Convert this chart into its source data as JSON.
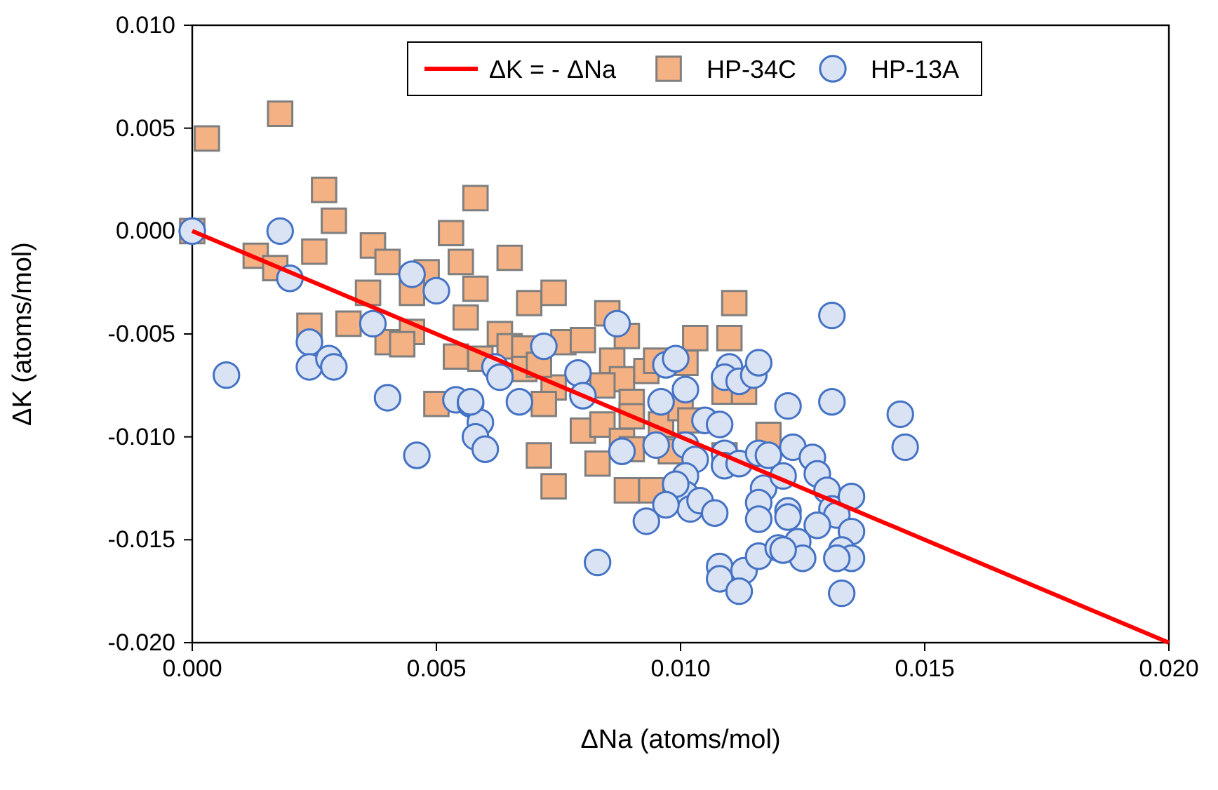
{
  "chart_data": {
    "type": "scatter",
    "xlabel": "ΔNa (atoms/mol)",
    "ylabel": "ΔK (atoms/mol)",
    "xlim": [
      0,
      0.02
    ],
    "ylim": [
      -0.02,
      0.01
    ],
    "xticks": [
      {
        "value": 0,
        "label": "0.000"
      },
      {
        "value": 0.005,
        "label": "0.005"
      },
      {
        "value": 0.01,
        "label": "0.010"
      },
      {
        "value": 0.015,
        "label": "0.015"
      },
      {
        "value": 0.02,
        "label": "0.020"
      }
    ],
    "yticks": [
      {
        "value": -0.02,
        "label": "-0.020"
      },
      {
        "value": -0.015,
        "label": "-0.015"
      },
      {
        "value": -0.01,
        "label": "-0.010"
      },
      {
        "value": -0.005,
        "label": "-0.005"
      },
      {
        "value": 0,
        "label": "0.000"
      },
      {
        "value": 0.005,
        "label": "0.005"
      },
      {
        "value": 0.01,
        "label": "0.010"
      }
    ],
    "legend": "top",
    "grid": false,
    "series": [
      {
        "name": "ΔK = - ΔNa",
        "type": "line",
        "color": "#ff0000",
        "line_style": "solid",
        "x": [
          0,
          0.02
        ],
        "values": [
          0,
          -0.02
        ]
      },
      {
        "name": "HP-34C",
        "color": "#f4b183",
        "marker": "square",
        "x": [
          0,
          0.0003,
          0.0018,
          0.0027,
          0.0029,
          0.0025,
          0.0013,
          0.0017,
          0.0058,
          0.0053,
          0.0037,
          0.004,
          0.0048,
          0.0045,
          0.0036,
          0.0055,
          0.0065,
          0.0058,
          0.0056,
          0.0024,
          0.0032,
          0.004,
          0.0045,
          0.0043,
          0.0054,
          0.0059,
          0.005,
          0.0063,
          0.0069,
          0.0074,
          0.0065,
          0.0068,
          0.0068,
          0.0074,
          0.0072,
          0.0076,
          0.008,
          0.0085,
          0.0089,
          0.0086,
          0.0088,
          0.0084,
          0.009,
          0.008,
          0.0084,
          0.0071,
          0.0074,
          0.0083,
          0.0089,
          0.0094,
          0.0088,
          0.009,
          0.009,
          0.0096,
          0.0098,
          0.01,
          0.0102,
          0.0093,
          0.0095,
          0.0101,
          0.0103,
          0.011,
          0.0111,
          0.0109,
          0.0113,
          0.0118,
          0.0109,
          0.0071
        ],
        "values": [
          0,
          0.0045,
          0.0057,
          0.002,
          0.0005,
          -0.001,
          -0.0012,
          -0.0018,
          0.0016,
          -0.0001,
          -0.0007,
          -0.0015,
          -0.002,
          -0.003,
          -0.003,
          -0.0015,
          -0.0013,
          -0.0028,
          -0.0042,
          -0.0046,
          -0.0045,
          -0.0054,
          -0.0049,
          -0.0055,
          -0.0061,
          -0.0062,
          -0.0084,
          -0.005,
          -0.0035,
          -0.003,
          -0.0056,
          -0.0057,
          -0.0067,
          -0.0076,
          -0.0084,
          -0.0054,
          -0.0053,
          -0.004,
          -0.0051,
          -0.0063,
          -0.0072,
          -0.0075,
          -0.0083,
          -0.0097,
          -0.0094,
          -0.0109,
          -0.0124,
          -0.0113,
          -0.0126,
          -0.0126,
          -0.0102,
          -0.0106,
          -0.009,
          -0.0094,
          -0.0107,
          -0.0086,
          -0.0092,
          -0.0068,
          -0.0063,
          -0.0064,
          -0.0052,
          -0.0052,
          -0.0035,
          -0.0078,
          -0.0078,
          -0.0099,
          -0.0109,
          -0.0065
        ]
      },
      {
        "name": "HP-13A",
        "color": "#dae3f3",
        "marker": "circle",
        "x": [
          0,
          0.0018,
          0.002,
          0.0007,
          0.0024,
          0.0024,
          0.0028,
          0.0029,
          0.0045,
          0.005,
          0.0037,
          0.004,
          0.0046,
          0.0054,
          0.0057,
          0.0059,
          0.0058,
          0.006,
          0.0062,
          0.0063,
          0.0087,
          0.0072,
          0.0057,
          0.0067,
          0.0079,
          0.008,
          0.0097,
          0.0099,
          0.0101,
          0.0096,
          0.0105,
          0.0108,
          0.0095,
          0.0101,
          0.0103,
          0.0088,
          0.0101,
          0.0101,
          0.0099,
          0.0102,
          0.0104,
          0.0107,
          0.0097,
          0.0093,
          0.0083,
          0.011,
          0.0109,
          0.0112,
          0.0115,
          0.0116,
          0.0109,
          0.0109,
          0.0112,
          0.0116,
          0.0118,
          0.0117,
          0.0116,
          0.0116,
          0.0108,
          0.0113,
          0.0116,
          0.012,
          0.0131,
          0.0131,
          0.0122,
          0.0145,
          0.0146,
          0.0123,
          0.0127,
          0.0128,
          0.0121,
          0.0122,
          0.0122,
          0.013,
          0.0131,
          0.0132,
          0.0135,
          0.0128,
          0.0135,
          0.0133,
          0.0135,
          0.0132,
          0.0133,
          0.0124,
          0.0125,
          0.0121,
          0.0108,
          0.0112
        ],
        "values": [
          0,
          0.0,
          -0.0023,
          -0.007,
          -0.0054,
          -0.0066,
          -0.0062,
          -0.0066,
          -0.0021,
          -0.0029,
          -0.0045,
          -0.0081,
          -0.0109,
          -0.0082,
          -0.0084,
          -0.0093,
          -0.01,
          -0.0106,
          -0.0066,
          -0.0071,
          -0.0045,
          -0.0056,
          -0.0083,
          -0.0083,
          -0.0069,
          -0.008,
          -0.0065,
          -0.0062,
          -0.0077,
          -0.0083,
          -0.0092,
          -0.0094,
          -0.0104,
          -0.0104,
          -0.0111,
          -0.0107,
          -0.0119,
          -0.0128,
          -0.0123,
          -0.0135,
          -0.0131,
          -0.0137,
          -0.0133,
          -0.0141,
          -0.0161,
          -0.0066,
          -0.0071,
          -0.0073,
          -0.007,
          -0.0064,
          -0.0108,
          -0.0114,
          -0.0113,
          -0.0108,
          -0.0109,
          -0.0125,
          -0.0132,
          -0.014,
          -0.0163,
          -0.0165,
          -0.0158,
          -0.0154,
          -0.0041,
          -0.0083,
          -0.0085,
          -0.0089,
          -0.0105,
          -0.0105,
          -0.011,
          -0.0118,
          -0.0119,
          -0.0136,
          -0.0139,
          -0.0126,
          -0.0135,
          -0.0138,
          -0.0129,
          -0.0143,
          -0.0146,
          -0.0155,
          -0.0159,
          -0.0159,
          -0.0176,
          -0.0151,
          -0.0159,
          -0.0155,
          -0.0169,
          -0.0175
        ]
      }
    ]
  }
}
